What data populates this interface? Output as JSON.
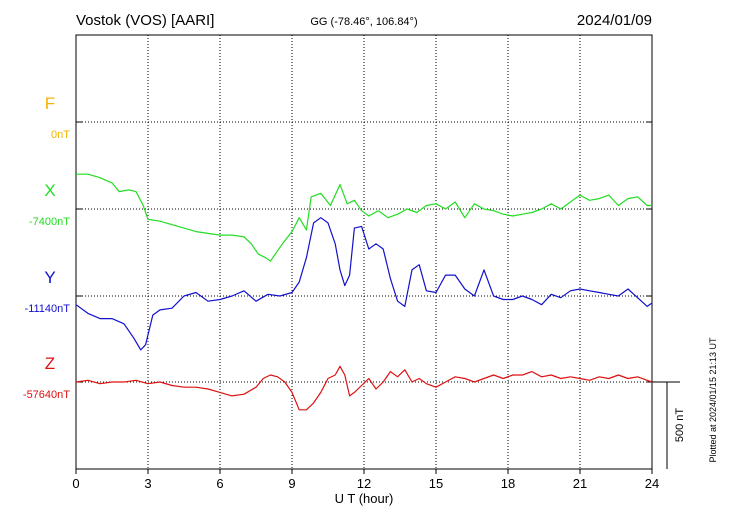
{
  "header": {
    "station": "Vostok (VOS)  [AARI]",
    "coords": "GG (-78.46°, 106.84°)",
    "date": "2024/01/09"
  },
  "side_note": "Plotted at 2024/01/15 21:13 UT",
  "chart_data": {
    "type": "line",
    "xlabel": "U T (hour)",
    "xlim": [
      0,
      24
    ],
    "xticks": [
      0,
      3,
      6,
      9,
      12,
      15,
      18,
      21,
      24
    ],
    "grid": true,
    "scale_bar": {
      "label": "500 nT",
      "value_nT": 500
    },
    "series": [
      {
        "name": "F",
        "baseline_label": "0nT",
        "color": "#f2b400",
        "x": [],
        "values": []
      },
      {
        "name": "X",
        "baseline_label": "-7400nT",
        "color": "#22dd22",
        "x": [
          0,
          0.5,
          1,
          1.5,
          1.8,
          2.2,
          2.5,
          2.8,
          3.0,
          3.5,
          4.0,
          4.5,
          5.0,
          5.5,
          6.0,
          6.5,
          7.0,
          7.3,
          7.6,
          7.9,
          8.1,
          8.3,
          8.6,
          9.0,
          9.3,
          9.6,
          9.8,
          10.2,
          10.6,
          11.0,
          11.3,
          11.6,
          11.9,
          12.2,
          12.6,
          13.0,
          13.4,
          13.8,
          14.2,
          14.6,
          15.0,
          15.4,
          15.8,
          16.2,
          16.6,
          17.0,
          17.4,
          17.8,
          18.2,
          18.6,
          19.0,
          19.4,
          19.8,
          20.2,
          20.6,
          21.0,
          21.4,
          21.8,
          22.2,
          22.6,
          23.0,
          23.4,
          23.8,
          24.0
        ],
        "values": [
          200,
          200,
          180,
          150,
          100,
          110,
          100,
          20,
          -60,
          -70,
          -90,
          -110,
          -130,
          -140,
          -150,
          -150,
          -160,
          -200,
          -260,
          -280,
          -300,
          -260,
          -200,
          -130,
          -50,
          -120,
          70,
          90,
          20,
          140,
          30,
          50,
          -10,
          -40,
          -10,
          -50,
          -30,
          0,
          -20,
          20,
          30,
          0,
          40,
          -50,
          30,
          0,
          -10,
          -30,
          -40,
          -30,
          -20,
          0,
          30,
          0,
          40,
          80,
          50,
          60,
          80,
          20,
          60,
          70,
          20,
          20
        ]
      },
      {
        "name": "Y",
        "baseline_label": "-11140nT",
        "color": "#1111cc",
        "x": [
          0,
          0.5,
          1.0,
          1.5,
          2.0,
          2.4,
          2.7,
          2.9,
          3.2,
          3.5,
          4.0,
          4.5,
          5.0,
          5.5,
          6.0,
          6.5,
          7.0,
          7.5,
          8.0,
          8.5,
          9.0,
          9.3,
          9.6,
          9.9,
          10.2,
          10.5,
          10.8,
          11.0,
          11.2,
          11.4,
          11.6,
          11.9,
          12.2,
          12.5,
          12.8,
          13.1,
          13.4,
          13.7,
          14.0,
          14.3,
          14.6,
          15.0,
          15.4,
          15.8,
          16.2,
          16.6,
          17.0,
          17.4,
          17.8,
          18.2,
          18.6,
          19.0,
          19.4,
          19.8,
          20.2,
          20.6,
          21.0,
          21.4,
          21.8,
          22.2,
          22.6,
          23.0,
          23.4,
          23.8,
          24.0
        ],
        "values": [
          -50,
          -100,
          -130,
          -130,
          -160,
          -240,
          -310,
          -280,
          -110,
          -80,
          -70,
          0,
          20,
          -30,
          -20,
          0,
          30,
          -30,
          10,
          0,
          20,
          80,
          220,
          420,
          450,
          420,
          300,
          150,
          60,
          120,
          390,
          400,
          270,
          300,
          270,
          100,
          -30,
          -60,
          150,
          180,
          30,
          20,
          120,
          120,
          40,
          0,
          150,
          0,
          -20,
          -20,
          0,
          -20,
          -50,
          10,
          -10,
          30,
          40,
          30,
          20,
          10,
          0,
          40,
          -10,
          -60,
          -40
        ]
      },
      {
        "name": "Z",
        "baseline_label": "-57640nT",
        "color": "#dd1111",
        "x": [
          0,
          0.5,
          1.0,
          1.5,
          2.0,
          2.5,
          3.0,
          3.5,
          4.0,
          4.5,
          5.0,
          5.5,
          6.0,
          6.5,
          7.0,
          7.5,
          7.8,
          8.1,
          8.4,
          8.7,
          9.0,
          9.3,
          9.6,
          9.9,
          10.2,
          10.5,
          10.8,
          11.0,
          11.2,
          11.4,
          11.6,
          11.9,
          12.2,
          12.5,
          12.8,
          13.1,
          13.4,
          13.7,
          14.0,
          14.3,
          14.6,
          15.0,
          15.4,
          15.8,
          16.2,
          16.6,
          17.0,
          17.4,
          17.8,
          18.2,
          18.6,
          19.0,
          19.4,
          19.8,
          20.2,
          20.6,
          21.0,
          21.4,
          21.8,
          22.2,
          22.6,
          23.0,
          23.4,
          23.8,
          24.0
        ],
        "values": [
          0,
          10,
          -10,
          0,
          0,
          10,
          -10,
          0,
          -20,
          -30,
          -30,
          -40,
          -60,
          -80,
          -70,
          -30,
          20,
          40,
          30,
          0,
          -60,
          -160,
          -160,
          -120,
          -60,
          20,
          40,
          90,
          40,
          -80,
          -60,
          -20,
          20,
          -40,
          0,
          60,
          30,
          70,
          0,
          20,
          -10,
          -30,
          0,
          30,
          20,
          0,
          20,
          40,
          20,
          40,
          40,
          60,
          30,
          40,
          20,
          30,
          20,
          10,
          30,
          20,
          40,
          20,
          30,
          10,
          0
        ]
      }
    ]
  }
}
